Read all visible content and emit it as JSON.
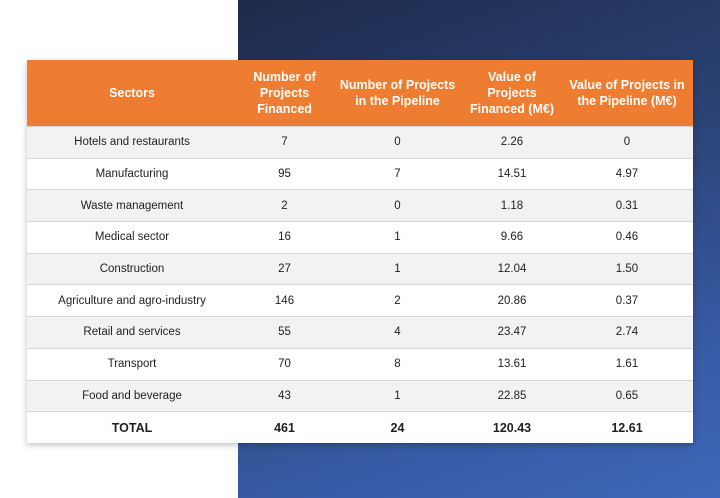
{
  "table": {
    "headers": [
      "Sectors",
      "Number of Projects Financed",
      "Number of Projects in the Pipeline",
      "Value of Projects Financed (M€)",
      "Value of Projects in the Pipeline (M€)"
    ],
    "rows": [
      [
        "Hotels and restaurants",
        "7",
        "0",
        "2.26",
        "0"
      ],
      [
        "Manufacturing",
        "95",
        "7",
        "14.51",
        "4.97"
      ],
      [
        "Waste management",
        "2",
        "0",
        "1.18",
        "0.31"
      ],
      [
        "Medical sector",
        "16",
        "1",
        "9.66",
        "0.46"
      ],
      [
        "Construction",
        "27",
        "1",
        "12.04",
        "1.50"
      ],
      [
        "Agriculture and agro-industry",
        "146",
        "2",
        "20.86",
        "0.37"
      ],
      [
        "Retail and services",
        "55",
        "4",
        "23.47",
        "2.74"
      ],
      [
        "Transport",
        "70",
        "8",
        "13.61",
        "1.61"
      ],
      [
        "Food and beverage",
        "43",
        "1",
        "22.85",
        "0.65"
      ]
    ],
    "total": [
      "TOTAL",
      "461",
      "24",
      "120.43",
      "12.61"
    ]
  },
  "colors": {
    "header": "#ee7d32",
    "panel": "#2a4172",
    "row_alt": "#f2f2f2"
  }
}
